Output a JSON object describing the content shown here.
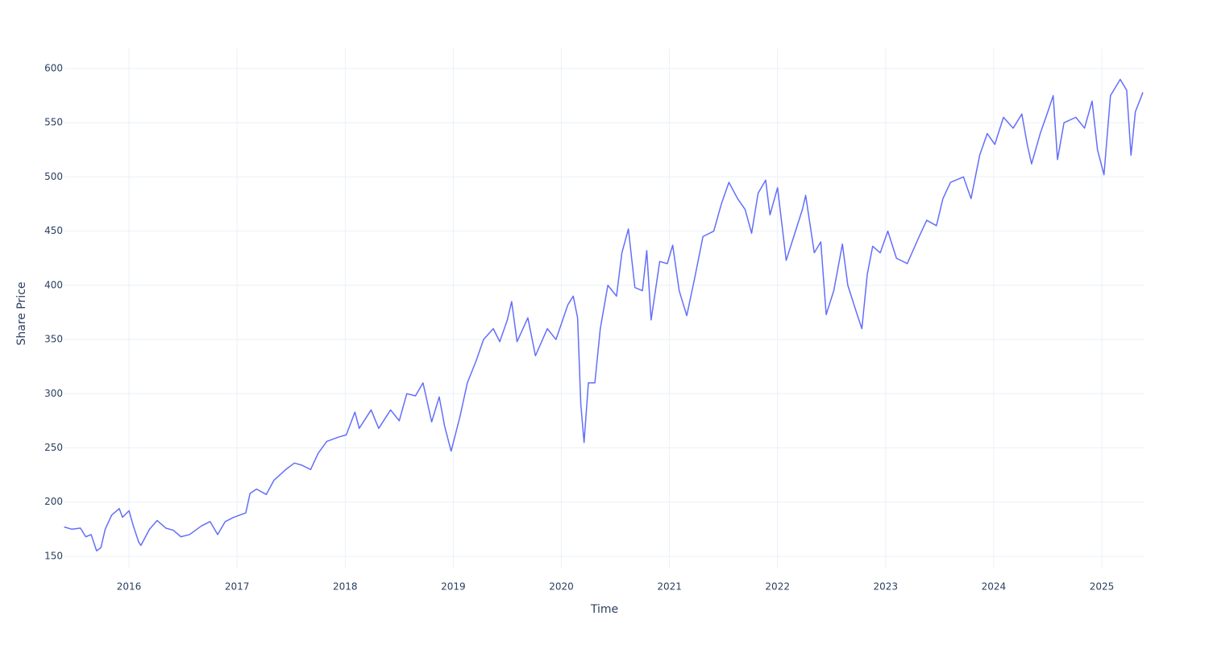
{
  "chart_data": {
    "type": "line",
    "x_label": "Time",
    "y_label": "Share Price",
    "color": "#636efa",
    "grid": true,
    "xlim": [
      2015.403,
      2025.395
    ],
    "ylim": [
      138.8,
      618.6
    ],
    "xticks": [
      2016,
      2017,
      2018,
      2019,
      2020,
      2021,
      2022,
      2023,
      2024,
      2025
    ],
    "yticks": [
      150,
      200,
      250,
      300,
      350,
      400,
      450,
      500,
      550,
      600
    ],
    "x": [
      2015.4,
      2015.47,
      2015.55,
      2015.6,
      2015.65,
      2015.7,
      2015.74,
      2015.78,
      2015.84,
      2015.91,
      2015.94,
      2016.0,
      2016.04,
      2016.09,
      2016.11,
      2016.19,
      2016.26,
      2016.34,
      2016.41,
      2016.48,
      2016.56,
      2016.67,
      2016.75,
      2016.82,
      2016.89,
      2016.97,
      2017.08,
      2017.12,
      2017.18,
      2017.27,
      2017.34,
      2017.45,
      2017.53,
      2017.6,
      2017.68,
      2017.75,
      2017.83,
      2017.94,
      2018.01,
      2018.09,
      2018.13,
      2018.24,
      2018.31,
      2018.42,
      2018.5,
      2018.57,
      2018.65,
      2018.72,
      2018.8,
      2018.87,
      2018.92,
      2018.98,
      2019.06,
      2019.13,
      2019.21,
      2019.28,
      2019.37,
      2019.43,
      2019.5,
      2019.54,
      2019.59,
      2019.69,
      2019.76,
      2019.87,
      2019.95,
      2020.06,
      2020.11,
      2020.15,
      2020.18,
      2020.21,
      2020.25,
      2020.31,
      2020.36,
      2020.43,
      2020.51,
      2020.56,
      2020.62,
      2020.68,
      2020.75,
      2020.79,
      2020.83,
      2020.91,
      2020.98,
      2021.03,
      2021.09,
      2021.16,
      2021.23,
      2021.31,
      2021.41,
      2021.48,
      2021.55,
      2021.63,
      2021.7,
      2021.76,
      2021.82,
      2021.89,
      2021.93,
      2022.0,
      2022.08,
      2022.15,
      2022.23,
      2022.26,
      2022.34,
      2022.4,
      2022.45,
      2022.52,
      2022.6,
      2022.65,
      2022.73,
      2022.78,
      2022.83,
      2022.88,
      2022.95,
      2023.02,
      2023.1,
      2023.2,
      2023.31,
      2023.38,
      2023.47,
      2023.53,
      2023.6,
      2023.72,
      2023.79,
      2023.87,
      2023.94,
      2024.01,
      2024.09,
      2024.18,
      2024.26,
      2024.31,
      2024.35,
      2024.43,
      2024.5,
      2024.55,
      2024.59,
      2024.65,
      2024.76,
      2024.84,
      2024.91,
      2024.96,
      2025.02,
      2025.08,
      2025.17,
      2025.23,
      2025.27,
      2025.31,
      2025.38
    ],
    "values": [
      177,
      175,
      176,
      168,
      170,
      155,
      158,
      175,
      188,
      194,
      186,
      192,
      178,
      163,
      160,
      175,
      183,
      176,
      174,
      168,
      170,
      178,
      182,
      170,
      182,
      186,
      190,
      208,
      212,
      207,
      220,
      230,
      236,
      234,
      230,
      245,
      256,
      260,
      262,
      283,
      268,
      285,
      268,
      285,
      275,
      300,
      298,
      310,
      274,
      297,
      270,
      247,
      278,
      310,
      330,
      350,
      360,
      348,
      368,
      385,
      348,
      370,
      335,
      360,
      350,
      382,
      390,
      370,
      290,
      255,
      310,
      310,
      360,
      400,
      390,
      430,
      452,
      398,
      395,
      432,
      368,
      422,
      420,
      437,
      395,
      372,
      405,
      445,
      450,
      475,
      495,
      480,
      470,
      448,
      485,
      497,
      465,
      490,
      423,
      445,
      470,
      483,
      430,
      440,
      373,
      395,
      438,
      400,
      375,
      360,
      410,
      436,
      430,
      450,
      425,
      420,
      445,
      460,
      455,
      480,
      495,
      500,
      480,
      520,
      540,
      530,
      555,
      545,
      558,
      530,
      512,
      540,
      560,
      575,
      516,
      550,
      555,
      545,
      570,
      525,
      502,
      575,
      590,
      580,
      520,
      560,
      578
    ]
  }
}
